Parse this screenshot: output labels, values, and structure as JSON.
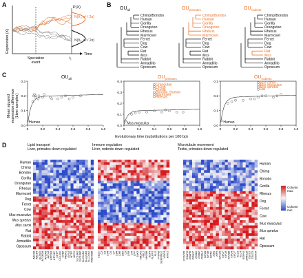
{
  "panels": {
    "A": {
      "letter": "A",
      "ylabel": "Expression (X)",
      "xlabel": "Time",
      "event_label1": "Speciation",
      "event_label2": "event",
      "t_label": "t",
      "t_sub": "i",
      "px_label": "P(X)",
      "dist_upper": "N(θ₁, σ² / 2α)",
      "dist_lower": "N(θ₀, σ² / 2α)",
      "colors": {
        "upper": "#e8702a",
        "lower": "#666666"
      }
    },
    "B": {
      "letter": "B",
      "trees": [
        {
          "title": "OU",
          "sub": "all",
          "title_color": "#111111",
          "taxa": [
            "Chimp/Bonobo",
            "Human",
            "Gorilla",
            "Orangutan",
            "Rhesus",
            "Marmoset",
            "Ferret",
            "Dog",
            "Cow",
            "Rat",
            "Mus",
            "Rabbit",
            "Armadillo",
            "Opossum"
          ],
          "highlight": []
        },
        {
          "title": "OU",
          "sub": "primates",
          "title_color": "#e8702a",
          "taxa": [
            "Chimp/Bonobo",
            "Human",
            "Gorilla",
            "Orangutan",
            "Rhesus",
            "Marmoset",
            "Ferret",
            "Dog",
            "Cow",
            "Rat",
            "Mus",
            "Rabbit",
            "Armadillo",
            "Opossum"
          ],
          "highlight": [
            "Chimp/Bonobo",
            "Human",
            "Gorilla",
            "Orangutan",
            "Rhesus",
            "Marmoset"
          ]
        },
        {
          "title": "OU",
          "sub": "rodents",
          "title_color": "#e8702a",
          "taxa": [
            "Chimp/Bonobo",
            "Human",
            "Gorilla",
            "Orangutan",
            "Rhesus",
            "Marmoset",
            "Ferret",
            "Dog",
            "Cow",
            "Rat",
            "Mus",
            "Rabbit",
            "Armadillo",
            "Opossum"
          ],
          "highlight": [
            "Rat",
            "Mus"
          ]
        }
      ]
    },
    "C": {
      "letter": "C",
      "ylabel1": "Mean squared",
      "ylabel2": "expression difference",
      "ylabel3": "(Liver samples)",
      "xlabel": "Evolutionary time (substitutions per 100 bp)",
      "plots": [
        {
          "title": "OU",
          "sub": "all",
          "title_color": "#111111",
          "yticks": [
            "0.0",
            "0.1",
            "0.2",
            "0.3"
          ],
          "ylim": [
            0,
            0.3
          ],
          "xticks": [
            "0",
            "0.2",
            "0.4",
            "0.6",
            "0.8",
            "1.0"
          ],
          "points": [
            [
              0.01,
              0.03
            ],
            [
              0.07,
              0.16
            ],
            [
              0.08,
              0.2
            ],
            [
              0.09,
              0.21
            ],
            [
              0.1,
              0.19
            ],
            [
              0.11,
              0.2
            ],
            [
              0.14,
              0.18
            ],
            [
              0.15,
              0.2
            ],
            [
              0.2,
              0.19
            ],
            [
              0.22,
              0.21
            ],
            [
              0.3,
              0.19
            ],
            [
              0.32,
              0.18
            ],
            [
              0.4,
              0.18
            ],
            [
              0.45,
              0.19
            ],
            [
              0.5,
              0.2
            ],
            [
              0.55,
              0.18
            ],
            [
              0.6,
              0.19
            ],
            [
              0.7,
              0.2
            ]
          ],
          "annotations": [
            {
              "text": "Human",
              "x": 0.02,
              "y": 0.02,
              "color": "#111111"
            }
          ]
        },
        {
          "title": "OU",
          "sub": "primates",
          "title_color": "#e8702a",
          "yticks": [
            "0.0",
            "0.1",
            "0.2",
            "0.3",
            "0.4"
          ],
          "ylim": [
            0,
            0.4
          ],
          "xticks": [
            "0",
            "0.2",
            "0.4",
            "0.6",
            "0.8",
            "1.0"
          ],
          "points": [
            [
              0.02,
              0.04
            ],
            [
              0.1,
              0.1
            ],
            [
              0.15,
              0.11
            ],
            [
              0.2,
              0.12
            ],
            [
              0.3,
              0.12
            ],
            [
              0.4,
              0.13
            ],
            [
              0.5,
              0.12
            ],
            [
              0.55,
              0.14
            ],
            [
              0.6,
              0.13
            ],
            [
              0.7,
              0.12
            ],
            [
              0.78,
              0.12
            ],
            [
              0.4,
              0.3
            ],
            [
              0.4,
              0.33
            ],
            [
              0.4,
              0.35
            ],
            [
              0.4,
              0.37
            ],
            [
              0.4,
              0.28
            ],
            [
              0.4,
              0.26
            ]
          ],
          "annotations": [
            {
              "text": "Orangutan",
              "x": 0.42,
              "y": 0.37,
              "color": "#e8702a"
            },
            {
              "text": "Chimp",
              "x": 0.42,
              "y": 0.345,
              "color": "#e8702a"
            },
            {
              "text": "Gorilla",
              "x": 0.42,
              "y": 0.322,
              "color": "#e8702a"
            },
            {
              "text": "Bonobo, Human",
              "x": 0.42,
              "y": 0.3,
              "color": "#e8702a"
            },
            {
              "text": "Marmoset",
              "x": 0.42,
              "y": 0.277,
              "color": "#e8702a"
            },
            {
              "text": "Rhesus",
              "x": 0.42,
              "y": 0.255,
              "color": "#e8702a"
            },
            {
              "text": "Mus musculus",
              "x": 0.04,
              "y": 0.02,
              "color": "#111111"
            }
          ]
        },
        {
          "title": "OU",
          "sub": "rodents",
          "title_color": "#e8702a",
          "yticks": [
            "0.0",
            "0.1",
            "0.2",
            "0.3"
          ],
          "ylim": [
            0,
            0.3
          ],
          "xticks": [
            "0",
            "0.2",
            "0.4",
            "0.6",
            "0.8",
            "1.0"
          ],
          "points": [
            [
              0.02,
              0.03
            ],
            [
              0.1,
              0.15
            ],
            [
              0.15,
              0.16
            ],
            [
              0.2,
              0.17
            ],
            [
              0.3,
              0.17
            ],
            [
              0.4,
              0.18
            ],
            [
              0.45,
              0.18
            ],
            [
              0.5,
              0.19
            ],
            [
              0.55,
              0.2
            ],
            [
              0.6,
              0.2
            ],
            [
              0.7,
              0.19
            ],
            [
              0.75,
              0.2
            ],
            [
              0.8,
              0.21
            ],
            [
              0.5,
              0.26
            ],
            [
              0.5,
              0.275
            ],
            [
              0.5,
              0.29
            ],
            [
              0.5,
              0.245
            ]
          ],
          "annotations": [
            {
              "text": "Mus caroli",
              "x": 0.52,
              "y": 0.29,
              "color": "#e8702a"
            },
            {
              "text": "Mus musculus",
              "x": 0.52,
              "y": 0.275,
              "color": "#e8702a"
            },
            {
              "text": "Mus spretus",
              "x": 0.52,
              "y": 0.26,
              "color": "#e8702a"
            },
            {
              "text": "Rat",
              "x": 0.52,
              "y": 0.245,
              "color": "#e8702a"
            },
            {
              "text": "Human",
              "x": 0.04,
              "y": 0.02,
              "color": "#111111"
            }
          ]
        }
      ]
    },
    "D": {
      "letter": "D",
      "heatmaps": [
        {
          "title1": "Lipid transport",
          "title2": "Liver, primates down-regulated",
          "genes": [
            "ABCA8",
            "ABCB4",
            "ACSM1",
            "ACSM2A",
            "APOA5",
            "APOM",
            "ATP11B",
            "ATP11C",
            "CETP",
            "COL4A1",
            "CPB2",
            "FABP1",
            "GPX3",
            "MTTP",
            "NPC1",
            "SLC10A1",
            "SLC16A2",
            "SLCO1B1",
            "SLCO1B3",
            "SLCO2A1",
            "TMEM30B"
          ]
        },
        {
          "title1": "Immune regulation",
          "title2": "Liver, rodents down-regulated",
          "genes": [
            "C1QC",
            "C2",
            "C3",
            "C4A",
            "C6",
            "C7",
            "C8A",
            "C8B",
            "C8G",
            "C9",
            "CFB",
            "CFI",
            "CFP",
            "JAK3",
            "MASP2",
            "MBL2",
            "MYD88",
            "NCF4",
            "NLRP3",
            "PLG",
            "PTPN6",
            "SERPING1",
            "VSIG4",
            "WNT1"
          ]
        },
        {
          "title1": "Microtubule movement",
          "title2": "Testis, primates down-regulated",
          "genes": [
            "CCDC65",
            "DNAH3",
            "DNAH6",
            "DNAH7",
            "DNAI1",
            "DNAI2",
            "DNAL1",
            "KIF2A",
            "KIF3B",
            "KIF5C",
            "KIF6",
            "KIF9",
            "KIF13A",
            "KIF17",
            "KIF19",
            "KIF20B",
            "KIF24",
            "KIF27",
            "KLC3",
            "KLC4",
            "RSPH1",
            "SPAG16",
            "TEKT2",
            "TEKT3",
            "WDR78"
          ]
        }
      ],
      "rows_left": [
        "Human",
        "Chimp",
        "Bonobo",
        "Gorilla",
        "Orangutan",
        "Rhesus",
        "Marmoset",
        "Dog",
        "Ferret",
        "Cow",
        "Mus musculus",
        "Mus spretus",
        "Mus caroli",
        "Rat",
        "Rabbit",
        "Armadillo",
        "Opossum"
      ],
      "rows_right": [
        "Human",
        "Chimp",
        "Bonobo",
        "Gorilla",
        "Rhesus",
        "Dog",
        "Ferret",
        "Cow",
        "Mus musculus",
        "Mus spretus",
        "Rat",
        "Opossum"
      ],
      "legend_max": "Column max",
      "legend_min": "Column min",
      "colors": {
        "high": "#d7191c",
        "mid": "#f7f7f7",
        "low": "#2c4bc8"
      }
    }
  }
}
